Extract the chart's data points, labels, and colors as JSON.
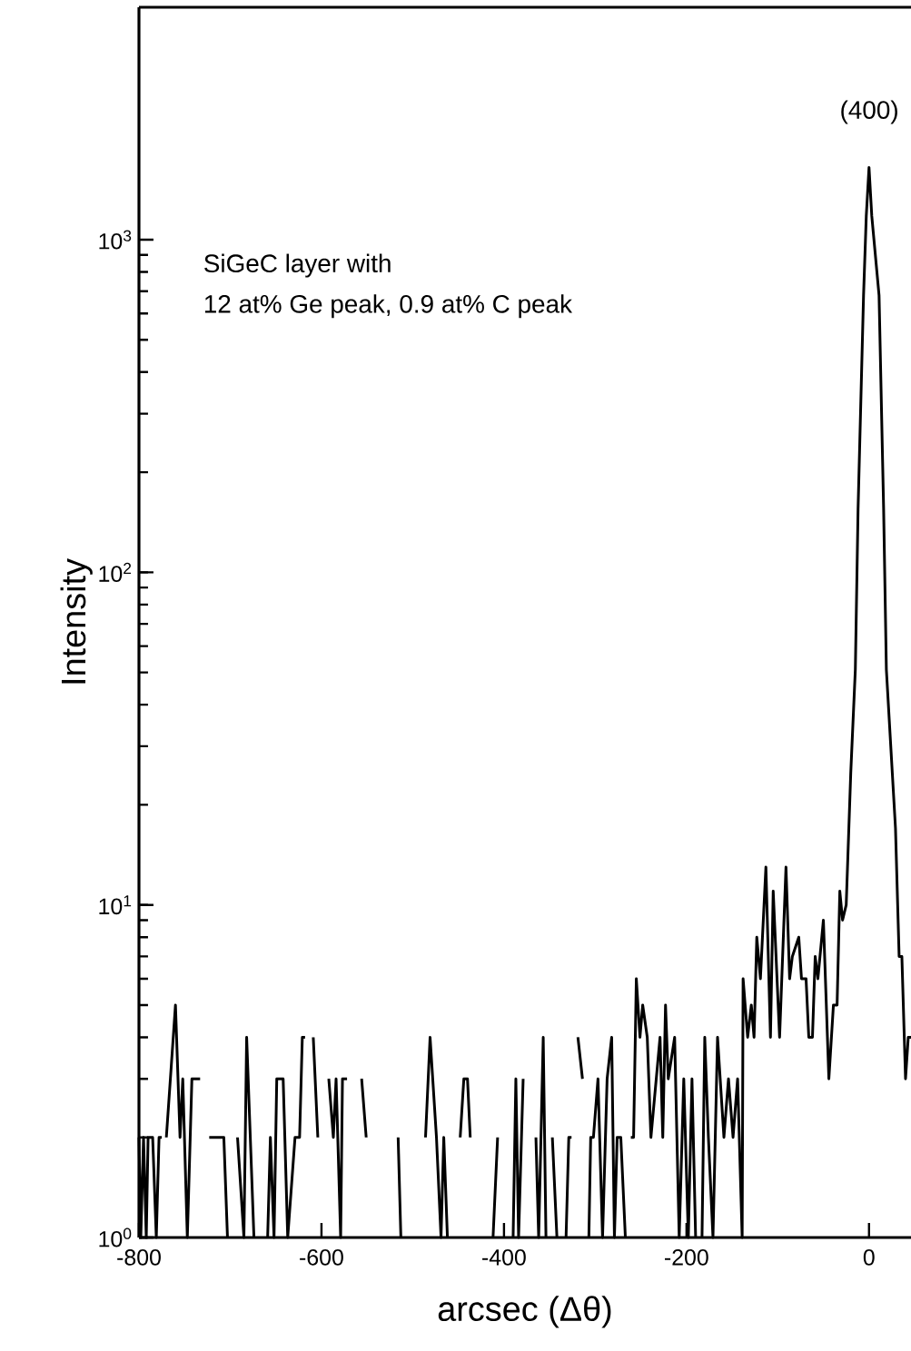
{
  "chart_data": {
    "type": "line",
    "xlabel": "arcsec (Δθ)",
    "ylabel": "Intensity",
    "log": "y",
    "xlim": [
      -800,
      46
    ],
    "ylim": [
      1,
      5000
    ],
    "xticks": [
      -800,
      -600,
      -400,
      -200,
      0
    ],
    "yticks": [
      {
        "value": 1,
        "label": "10$^{0}$"
      },
      {
        "value": 10,
        "label": "10$^{1}$"
      },
      {
        "value": 100,
        "label": "10$^{2}$"
      },
      {
        "value": 1000,
        "label": "10$^{3}$"
      }
    ],
    "marker": "none",
    "line_style": "solid",
    "annotations": [
      "(400)",
      "SiGeC layer with",
      "12 at% Ge peak, 0.9 at% C peak"
    ],
    "series": [
      {
        "color": "#000000",
        "x": [
          -800,
          -798,
          -795,
          -792,
          -790,
          -785,
          -781,
          -778,
          -775,
          -773,
          -770,
          -760,
          -755,
          -752,
          -747,
          -742,
          -733,
          -728,
          -723,
          -718,
          -713,
          -707,
          -703,
          -700,
          -692,
          -685,
          -682,
          -674,
          -665,
          -659,
          -656,
          -652,
          -649,
          -642,
          -637,
          -629,
          -624,
          -621,
          -618,
          -612,
          -609,
          -604,
          -598,
          -592,
          -587,
          -584,
          -579,
          -577,
          -572,
          -565,
          -556,
          -551,
          -540,
          -516,
          -513,
          -500,
          -486,
          -481,
          -474,
          -469,
          -466,
          -462,
          -455,
          -448,
          -444,
          -440,
          -437,
          -420,
          -412,
          -407,
          -398,
          -390,
          -387,
          -384,
          -379,
          -372,
          -365,
          -362,
          -357,
          -354,
          -350,
          -347,
          -342,
          -336,
          -332,
          -329,
          -326,
          -322,
          -319,
          -314,
          -310,
          -307,
          -305,
          -302,
          -297,
          -292,
          -287,
          -282,
          -279,
          -276,
          -272,
          -267,
          -264,
          -261,
          -258,
          -255,
          -251,
          -248,
          -243,
          -239,
          -229,
          -226,
          -223,
          -220,
          -213,
          -208,
          -203,
          -198,
          -194,
          -190,
          -186,
          -183,
          -180,
          -176,
          -171,
          -166,
          -159,
          -154,
          -149,
          -144,
          -139,
          -138,
          -133,
          -129,
          -126,
          -123,
          -119,
          -113,
          -108,
          -105,
          -98,
          -91,
          -87,
          -84,
          -77,
          -74,
          -69,
          -66,
          -62,
          -59,
          -56,
          -50,
          -44,
          -39,
          -35,
          -32,
          -29,
          -25,
          -20,
          -15,
          -12,
          -6,
          -3,
          0,
          3,
          11,
          16,
          19,
          29,
          33,
          36,
          40,
          43,
          46
        ],
        "values": [
          2,
          1,
          2,
          1,
          2,
          2,
          1,
          2,
          2,
          null,
          2,
          5,
          2,
          3,
          1,
          3,
          3,
          null,
          2,
          2,
          2,
          2,
          1,
          null,
          2,
          1,
          4,
          1,
          null,
          1,
          2,
          1,
          3,
          3,
          1,
          2,
          2,
          4,
          4,
          null,
          4,
          2,
          null,
          3,
          2,
          3,
          1,
          3,
          3,
          null,
          3,
          2,
          null,
          2,
          1,
          null,
          2,
          4,
          2,
          1,
          2,
          1,
          null,
          2,
          3,
          3,
          2,
          null,
          1,
          2,
          null,
          1,
          3,
          1,
          3,
          null,
          2,
          1,
          4,
          1,
          null,
          2,
          1,
          null,
          1,
          2,
          2,
          null,
          4,
          3,
          null,
          1,
          2,
          2,
          3,
          1,
          3,
          4,
          1,
          2,
          2,
          1,
          null,
          2,
          2,
          6,
          4,
          5,
          4,
          2,
          4,
          2,
          5,
          3,
          4,
          1,
          3,
          1,
          3,
          1,
          null,
          1,
          4,
          2,
          1,
          4,
          2,
          3,
          2,
          3,
          1,
          6,
          4,
          5,
          4,
          8,
          6,
          13,
          4,
          11,
          4,
          13,
          6,
          7,
          8,
          6,
          6,
          4,
          4,
          7,
          6,
          9,
          3,
          5,
          5,
          11,
          9,
          10,
          25,
          51,
          155,
          680,
          1180,
          1650,
          1180,
          680,
          155,
          51,
          17,
          7,
          7,
          3,
          4,
          4
        ]
      }
    ]
  }
}
